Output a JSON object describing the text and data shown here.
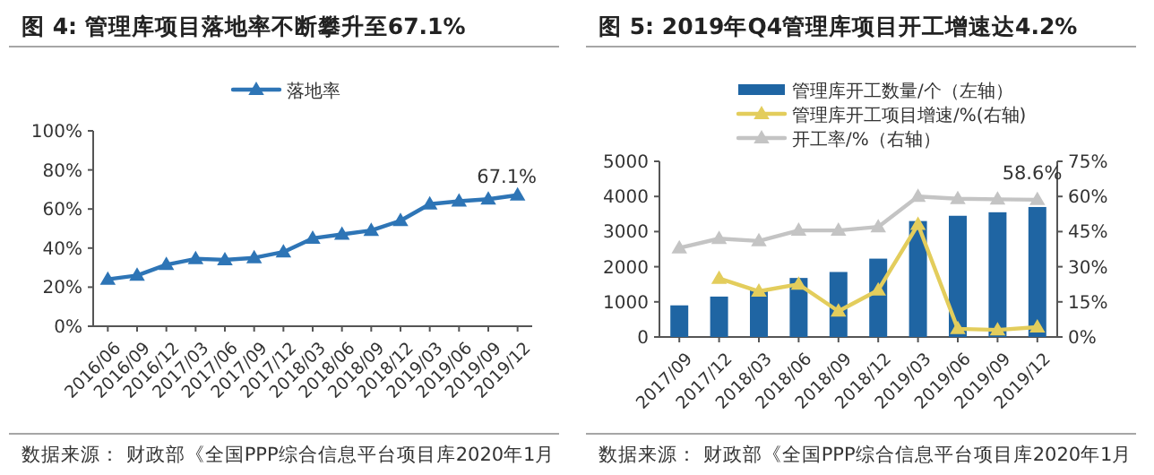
{
  "chart_data": [
    {
      "type": "line",
      "title": "图 4: 管理库项目落地率不断攀升至67.1%",
      "categories": [
        "2016/06",
        "2016/09",
        "2016/12",
        "2017/03",
        "2017/06",
        "2017/09",
        "2017/12",
        "2018/03",
        "2018/06",
        "2018/09",
        "2018/12",
        "2019/03",
        "2019/06",
        "2019/09",
        "2019/12"
      ],
      "series": [
        {
          "name": "落地率",
          "color": "#2e75b6",
          "values": [
            24,
            26,
            31.5,
            34.5,
            34,
            35,
            38,
            45,
            47,
            49,
            54,
            62.5,
            64,
            65,
            67.1
          ]
        }
      ],
      "ylim": [
        0,
        100
      ],
      "yticks": [
        {
          "value": 0,
          "label": "0%"
        },
        {
          "value": 20,
          "label": "20%"
        },
        {
          "value": 40,
          "label": "40%"
        },
        {
          "value": 60,
          "label": "60%"
        },
        {
          "value": 80,
          "label": "80%"
        },
        {
          "value": 100,
          "label": "100%"
        }
      ],
      "marker": "triangle",
      "legend": "top",
      "grid": false,
      "annotations": [
        {
          "text": "67.1%",
          "x": "2019/12",
          "y": 67.1
        },
        "数据来源： 财政部《全国PPP综合信息平台项目库2020年1月"
      ]
    },
    {
      "type": "bar",
      "title": "图 5: 2019年Q4管理库项目开工增速达4.2%",
      "categories": [
        "2017/09",
        "2017/12",
        "2018/03",
        "2018/06",
        "2018/09",
        "2018/12",
        "2019/03",
        "2019/06",
        "2019/09",
        "2019/12"
      ],
      "series": [
        {
          "name": "管理库开工数量/个（左轴）",
          "type": "bar",
          "color": "#1f65a3",
          "values": [
            900,
            1150,
            1350,
            1680,
            1850,
            2230,
            3300,
            3450,
            3550,
            3700
          ]
        },
        {
          "name": "管理库开工项目增速/%(右轴)",
          "type": "line",
          "axis": "y2",
          "color": "#e3cd5c",
          "values": [
            null,
            25,
            19.5,
            22.5,
            11,
            20,
            48,
            3.5,
            3,
            4.2
          ]
        },
        {
          "name": "开工率/%（右轴）",
          "type": "line",
          "axis": "y2",
          "color": "#c4c4c4",
          "values": [
            38,
            42,
            41,
            45.5,
            45.5,
            47,
            60,
            59,
            58.8,
            58.6
          ]
        }
      ],
      "ylim": [
        0,
        5000
      ],
      "yticks": [
        0,
        1000,
        2000,
        3000,
        4000,
        5000
      ],
      "y2lim": [
        0,
        75
      ],
      "y2ticks": [
        {
          "value": 0,
          "label": "0%"
        },
        {
          "value": 15,
          "label": "15%"
        },
        {
          "value": 30,
          "label": "30%"
        },
        {
          "value": 45,
          "label": "45%"
        },
        {
          "value": 60,
          "label": "60%"
        },
        {
          "value": 75,
          "label": "75%"
        }
      ],
      "marker": "triangle",
      "legend": "top",
      "grid": false,
      "annotations": [
        "58.6%",
        "数据来源： 财政部《全国PPP综合信息平台项目库2020年1月"
      ]
    }
  ]
}
